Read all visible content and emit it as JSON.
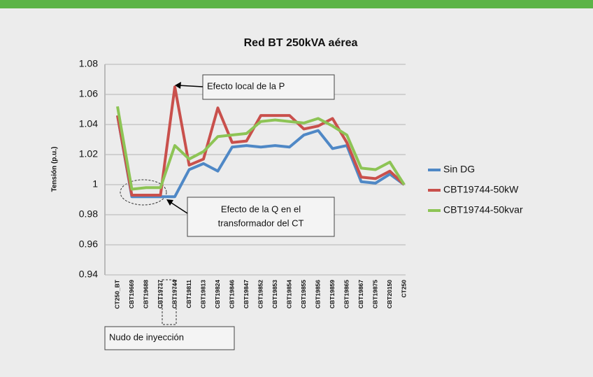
{
  "chart_data": {
    "type": "line",
    "title": "Red BT 250kVA aérea",
    "y_label": "Tensión (p.u.)",
    "categories": [
      "CT250_BT",
      "CBT19669",
      "CBT19688",
      "CBT19737",
      "CBT19744",
      "CBT19811",
      "CBT19813",
      "CBT19824",
      "CBT19846",
      "CBT19847",
      "CBT19852",
      "CBT19853",
      "CBT19854",
      "CBT19855",
      "CBT19856",
      "CBT19859",
      "CBT19865",
      "CBT19867",
      "CBT19875",
      "CBT20150",
      "CT250"
    ],
    "series": [
      {
        "name": "Sin DG",
        "color": "#4f88c6",
        "values": [
          1.046,
          0.992,
          0.992,
          0.992,
          0.992,
          1.01,
          1.014,
          1.009,
          1.025,
          1.026,
          1.025,
          1.026,
          1.025,
          1.033,
          1.036,
          1.024,
          1.026,
          1.002,
          1.001,
          1.007,
          1.0
        ]
      },
      {
        "name": "CBT19744-50kW",
        "color": "#c9504c",
        "values": [
          1.046,
          0.993,
          0.993,
          0.993,
          1.065,
          1.013,
          1.017,
          1.051,
          1.028,
          1.029,
          1.046,
          1.046,
          1.046,
          1.037,
          1.039,
          1.044,
          1.028,
          1.005,
          1.004,
          1.009,
          1.0
        ]
      },
      {
        "name": "CBT19744-50kvar",
        "color": "#8dc455",
        "values": [
          1.052,
          0.997,
          0.998,
          0.998,
          1.026,
          1.017,
          1.022,
          1.032,
          1.033,
          1.034,
          1.042,
          1.043,
          1.042,
          1.041,
          1.044,
          1.039,
          1.033,
          1.011,
          1.01,
          1.015,
          1.0
        ]
      }
    ],
    "ylim": [
      0.94,
      1.08
    ],
    "yticks": [
      0.94,
      0.96,
      0.98,
      1,
      1.02,
      1.04,
      1.06,
      1.08
    ],
    "grid": true,
    "legend": "right",
    "annotations": [
      {
        "text": [
          "Efecto local de la P"
        ]
      },
      {
        "text": [
          "Efecto de la Q en el",
          "transformador del CT"
        ]
      },
      {
        "text": [
          "Nudo de inyección"
        ]
      }
    ]
  }
}
